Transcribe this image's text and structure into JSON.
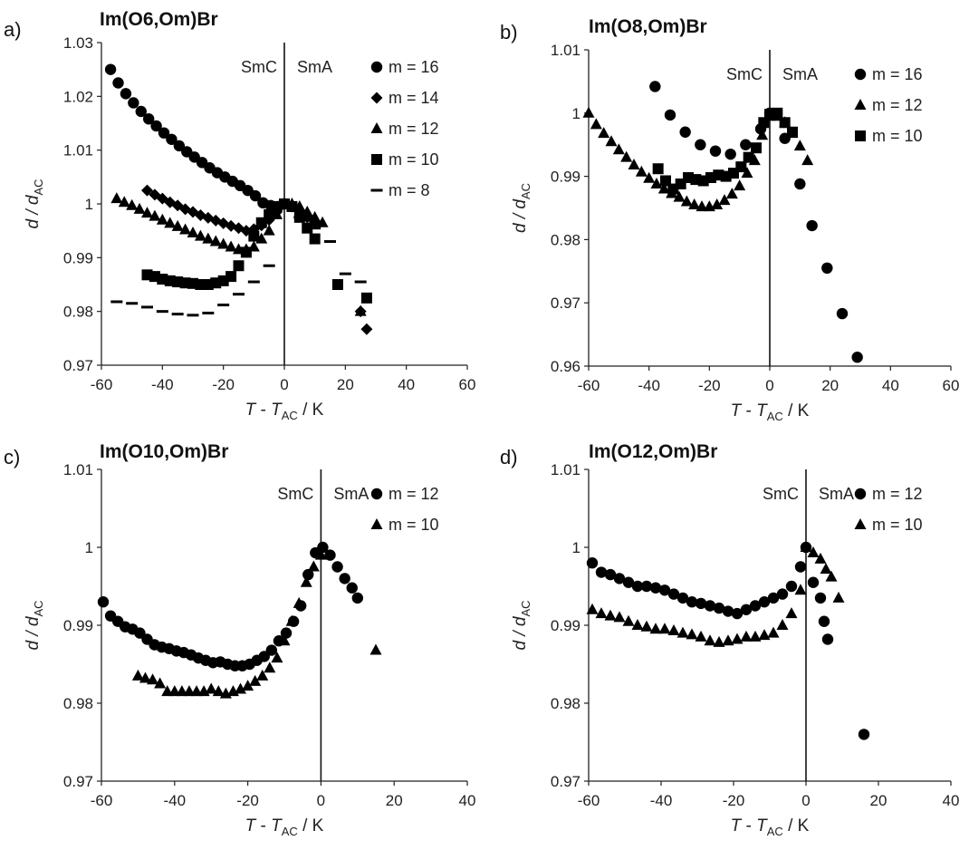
{
  "chart_data": [
    {
      "type": "scatter",
      "panel_label": "a)",
      "title": "Im(O6,Om)Br",
      "xlabel_italic": "T",
      "xlabel_mid": " - ",
      "xlabel_italic2": "T",
      "xlabel_sub": "AC",
      "xlabel_tail": " / K",
      "ylabel_main": "d / d",
      "ylabel_sub": "AC",
      "xlim": [
        -60,
        60
      ],
      "ylim": [
        0.97,
        1.03
      ],
      "xticks": [
        -60,
        -40,
        -20,
        0,
        20,
        40,
        60
      ],
      "xtick_labels": [
        "-60",
        "-40",
        "-20",
        "0",
        "20",
        "40",
        "60"
      ],
      "yticks": [
        0.97,
        0.98,
        0.99,
        1.0,
        1.01,
        1.02,
        1.03
      ],
      "ytick_labels": [
        "0.97",
        "0.98",
        "0.99",
        "1",
        "1.01",
        "1.02",
        "1.03"
      ],
      "phase_line_x": 0,
      "phase_left": "SmC",
      "phase_right": "SmA",
      "legend_position": "top-right",
      "series": [
        {
          "name": "m = 16",
          "marker": "circle",
          "x": [
            -57,
            -54.5,
            -52,
            -49.5,
            -47,
            -44.5,
            -42,
            -39.5,
            -37,
            -34.5,
            -32,
            -29.5,
            -27,
            -24.5,
            -22,
            -19.5,
            -17,
            -14.5,
            -12,
            -9.5,
            -7,
            -4.5,
            -2,
            0
          ],
          "y": [
            1.025,
            1.0225,
            1.0205,
            1.0188,
            1.0172,
            1.0158,
            1.0145,
            1.0132,
            1.012,
            1.0108,
            1.0097,
            1.0087,
            1.0077,
            1.0067,
            1.0058,
            1.005,
            1.0042,
            1.0034,
            1.0025,
            1.0015,
            1.0002,
            0.9997,
            0.9995,
            1.0
          ]
        },
        {
          "name": "m = 14",
          "marker": "diamond",
          "x": [
            -45,
            -42.5,
            -40,
            -37.5,
            -35,
            -32.5,
            -30,
            -27.5,
            -25,
            -22.5,
            -20,
            -17.5,
            -15,
            -12.5,
            -10,
            -7.5,
            -5,
            -2.5,
            0,
            2.5,
            5,
            7.5,
            10,
            25,
            27
          ],
          "y": [
            1.0025,
            1.0017,
            1.001,
            1.0003,
            0.9997,
            0.999,
            0.9985,
            0.9979,
            0.9974,
            0.9969,
            0.9964,
            0.9959,
            0.9955,
            0.995,
            0.9953,
            0.996,
            0.997,
            0.9985,
            1.0,
            0.9995,
            0.9985,
            0.9975,
            0.9965,
            0.98,
            0.9767
          ]
        },
        {
          "name": "m = 12",
          "marker": "triangle",
          "x": [
            -55,
            -52.5,
            -50,
            -47.5,
            -45,
            -42.5,
            -40,
            -37.5,
            -35,
            -32.5,
            -30,
            -27.5,
            -25,
            -22.5,
            -20,
            -17.5,
            -15,
            -12.5,
            -10,
            -7.5,
            -5,
            -2.5,
            0,
            2.5,
            5,
            7.5,
            10,
            12.5,
            25
          ],
          "y": [
            1.001,
            1.0003,
            0.9997,
            0.999,
            0.9983,
            0.9977,
            0.997,
            0.9964,
            0.9958,
            0.9952,
            0.9946,
            0.994,
            0.9935,
            0.993,
            0.9925,
            0.992,
            0.9915,
            0.9915,
            0.992,
            0.9935,
            0.995,
            0.998,
            1.0,
            1.0,
            0.9995,
            0.9985,
            0.9975,
            0.9965,
            0.98
          ]
        },
        {
          "name": "m = 10",
          "marker": "square",
          "x": [
            -45,
            -42.5,
            -40,
            -37.5,
            -35,
            -32.5,
            -30,
            -27.5,
            -25,
            -22.5,
            -20,
            -17.5,
            -15,
            -12.5,
            -10,
            -7.5,
            -5,
            -2.5,
            0,
            2.5,
            5,
            7.5,
            10,
            17.5,
            27
          ],
          "y": [
            0.9868,
            0.9865,
            0.986,
            0.9857,
            0.9855,
            0.9853,
            0.9852,
            0.985,
            0.985,
            0.9853,
            0.9857,
            0.9865,
            0.9885,
            0.991,
            0.994,
            0.9965,
            0.998,
            0.9995,
            1.0,
            0.9995,
            0.9975,
            0.9955,
            0.9935,
            0.985,
            0.9825
          ]
        },
        {
          "name": "m = 8",
          "marker": "dash",
          "x": [
            -55,
            -50,
            -45,
            -40,
            -35,
            -30,
            -25,
            -20,
            -15,
            -10,
            -5,
            5,
            10,
            15,
            20,
            25
          ],
          "y": [
            0.9818,
            0.9815,
            0.9808,
            0.98,
            0.9795,
            0.9793,
            0.9797,
            0.9812,
            0.9832,
            0.9855,
            0.9885,
            0.9975,
            0.9955,
            0.993,
            0.987,
            0.9855
          ]
        }
      ]
    },
    {
      "type": "scatter",
      "panel_label": "b)",
      "title": "Im(O8,Om)Br",
      "xlabel_italic": "T",
      "xlabel_mid": " - ",
      "xlabel_italic2": "T",
      "xlabel_sub": "AC",
      "xlabel_tail": " / K",
      "ylabel_main": "d / d",
      "ylabel_sub": "AC",
      "xlim": [
        -60,
        60
      ],
      "ylim": [
        0.96,
        1.01
      ],
      "xticks": [
        -60,
        -40,
        -20,
        0,
        20,
        40,
        60
      ],
      "xtick_labels": [
        "-60",
        "-40",
        "-20",
        "0",
        "20",
        "40",
        "60"
      ],
      "yticks": [
        0.96,
        0.97,
        0.98,
        0.99,
        1.0,
        1.01
      ],
      "ytick_labels": [
        "0.96",
        "0.97",
        "0.98",
        "0.99",
        "1",
        "1.01"
      ],
      "phase_line_x": 0,
      "phase_left": "SmC",
      "phase_right": "SmA",
      "legend_position": "top-right",
      "series": [
        {
          "name": "m = 16",
          "marker": "circle",
          "x": [
            -38,
            -33,
            -28,
            -23,
            -18,
            -13,
            -8,
            -3,
            0,
            5,
            10,
            14,
            19,
            24,
            29
          ],
          "y": [
            1.0042,
            0.9997,
            0.997,
            0.995,
            0.994,
            0.9935,
            0.995,
            0.9975,
            1.0,
            0.996,
            0.9888,
            0.9822,
            0.9755,
            0.9683,
            0.9614
          ]
        },
        {
          "name": "m = 12",
          "marker": "triangle",
          "x": [
            -60,
            -57.5,
            -55,
            -52.5,
            -50,
            -47.5,
            -45,
            -42.5,
            -40,
            -37.5,
            -35,
            -32.5,
            -30,
            -27.5,
            -25,
            -22.5,
            -20,
            -17.5,
            -15,
            -12.5,
            -10,
            -7.5,
            -5,
            -2.5,
            0,
            2.5,
            5,
            7.5,
            10,
            12.5
          ],
          "y": [
            1.0,
            0.9982,
            0.9968,
            0.9955,
            0.9942,
            0.993,
            0.9918,
            0.9907,
            0.9897,
            0.9888,
            0.988,
            0.9873,
            0.9867,
            0.986,
            0.9855,
            0.9852,
            0.9852,
            0.9855,
            0.9862,
            0.9872,
            0.9885,
            0.9905,
            0.9925,
            0.9965,
            0.9995,
            0.9995,
            0.9985,
            0.9968,
            0.9948,
            0.9925
          ]
        },
        {
          "name": "m = 10",
          "marker": "square",
          "x": [
            -37,
            -34.5,
            -32,
            -29.5,
            -27,
            -24.5,
            -22,
            -19.5,
            -17,
            -14.5,
            -12,
            -9.5,
            -7,
            -4.5,
            -2,
            0,
            2.5,
            5,
            7.5
          ],
          "y": [
            0.9912,
            0.9893,
            0.988,
            0.9888,
            0.9898,
            0.9895,
            0.9893,
            0.9898,
            0.9902,
            0.99,
            0.9905,
            0.9915,
            0.993,
            0.9945,
            0.9985,
            0.9998,
            1.0,
            0.9985,
            0.997
          ]
        }
      ]
    },
    {
      "type": "scatter",
      "panel_label": "c)",
      "title": "Im(O10,Om)Br",
      "xlabel_italic": "T",
      "xlabel_mid": " -",
      "xlabel_italic2": "T",
      "xlabel_sub": "AC",
      "xlabel_tail": " / K",
      "ylabel_main": "d / d",
      "ylabel_sub": "AC",
      "xlim": [
        -60,
        40
      ],
      "ylim": [
        0.97,
        1.01
      ],
      "xticks": [
        -60,
        -40,
        -20,
        0,
        20,
        40
      ],
      "xtick_labels": [
        "-60",
        "-40",
        "-20",
        "0",
        "20",
        "40"
      ],
      "yticks": [
        0.97,
        0.98,
        0.99,
        1.0,
        1.01
      ],
      "ytick_labels": [
        "0.97",
        "0.98",
        "0.99",
        "1",
        "1.01"
      ],
      "phase_line_x": 0,
      "phase_left": "SmC",
      "phase_right": "SmA",
      "legend_position": "top-right",
      "series": [
        {
          "name": "m = 12",
          "marker": "circle",
          "x": [
            -59.5,
            -57.5,
            -55.5,
            -53.5,
            -51.5,
            -49.5,
            -47.5,
            -45.5,
            -43.5,
            -41.5,
            -39.5,
            -37.5,
            -35.5,
            -33.5,
            -31.5,
            -29.5,
            -27.5,
            -25.5,
            -23.5,
            -21.5,
            -19.5,
            -17.5,
            -15.5,
            -13.5,
            -11.5,
            -9.5,
            -7.5,
            -5.5,
            -3.5,
            -1.5,
            0.5,
            2.5,
            4.5,
            6.5,
            8.5,
            10
          ],
          "y": [
            0.993,
            0.9912,
            0.9905,
            0.9898,
            0.9895,
            0.989,
            0.9882,
            0.9875,
            0.9872,
            0.987,
            0.9867,
            0.9865,
            0.9862,
            0.9858,
            0.9855,
            0.9852,
            0.9853,
            0.985,
            0.9848,
            0.9848,
            0.985,
            0.9855,
            0.986,
            0.9868,
            0.988,
            0.989,
            0.9905,
            0.9925,
            0.9965,
            0.9993,
            1.0,
            0.999,
            0.9975,
            0.996,
            0.9948,
            0.9935
          ]
        },
        {
          "name": "m = 10",
          "marker": "triangle",
          "x": [
            -50,
            -48,
            -46,
            -44,
            -42,
            -40,
            -38,
            -36,
            -34,
            -32,
            -30,
            -28,
            -26,
            -24,
            -22,
            -20,
            -18,
            -16,
            -14,
            -12,
            -10,
            -8,
            -6,
            -4,
            -2,
            0,
            15
          ],
          "y": [
            0.9835,
            0.9832,
            0.983,
            0.9825,
            0.9815,
            0.9815,
            0.9815,
            0.9815,
            0.9815,
            0.9815,
            0.9818,
            0.9815,
            0.9812,
            0.9815,
            0.9818,
            0.9822,
            0.9828,
            0.9835,
            0.9845,
            0.9858,
            0.988,
            0.9905,
            0.9928,
            0.9955,
            0.9975,
            0.999,
            0.9868
          ]
        }
      ]
    },
    {
      "type": "scatter",
      "panel_label": "d)",
      "title": "Im(O12,Om)Br",
      "xlabel_italic": "T",
      "xlabel_mid": " -",
      "xlabel_italic2": "T",
      "xlabel_sub": "AC",
      "xlabel_tail": " / K",
      "ylabel_main": "d / d",
      "ylabel_sub": "AC",
      "xlim": [
        -60,
        40
      ],
      "ylim": [
        0.97,
        1.01
      ],
      "xticks": [
        -60,
        -40,
        -20,
        0,
        20,
        40
      ],
      "xtick_labels": [
        "-60",
        "-40",
        "-20",
        "0",
        "20",
        "40"
      ],
      "yticks": [
        0.97,
        0.98,
        0.99,
        1.0,
        1.01
      ],
      "ytick_labels": [
        "0.97",
        "0.98",
        "0.99",
        "1",
        "1.01"
      ],
      "phase_line_x": 0,
      "phase_left": "SmC",
      "phase_right": "SmA",
      "legend_position": "top-right",
      "series": [
        {
          "name": "m = 12",
          "marker": "circle",
          "x": [
            -59,
            -56.5,
            -54,
            -51.5,
            -49,
            -46.5,
            -44,
            -41.5,
            -39,
            -36.5,
            -34,
            -31.5,
            -29,
            -26.5,
            -24,
            -21.5,
            -19,
            -16.5,
            -14,
            -11.5,
            -9,
            -6.5,
            -4,
            -1.5,
            0,
            2,
            4,
            5,
            6,
            16
          ],
          "y": [
            0.998,
            0.9968,
            0.9965,
            0.996,
            0.9955,
            0.995,
            0.995,
            0.9948,
            0.9945,
            0.994,
            0.9935,
            0.993,
            0.9928,
            0.9925,
            0.9922,
            0.9918,
            0.9915,
            0.992,
            0.9925,
            0.993,
            0.9935,
            0.994,
            0.995,
            0.9975,
            1.0,
            0.9955,
            0.9935,
            0.9905,
            0.9882,
            0.976
          ]
        },
        {
          "name": "m = 10",
          "marker": "triangle",
          "x": [
            -59,
            -56.5,
            -54,
            -51.5,
            -49,
            -46.5,
            -44,
            -41.5,
            -39,
            -36.5,
            -34,
            -31.5,
            -29,
            -26.5,
            -24,
            -21.5,
            -19,
            -16.5,
            -14,
            -11.5,
            -9,
            -6.5,
            -4,
            -1.5,
            0,
            2,
            4,
            5.5,
            7,
            9
          ],
          "y": [
            0.992,
            0.9915,
            0.9912,
            0.991,
            0.9905,
            0.99,
            0.9898,
            0.9895,
            0.9895,
            0.9893,
            0.989,
            0.9888,
            0.9885,
            0.988,
            0.9878,
            0.988,
            0.9882,
            0.9885,
            0.9885,
            0.9887,
            0.989,
            0.99,
            0.9915,
            0.9945,
            1.0,
            0.9993,
            0.9985,
            0.9972,
            0.9962,
            0.9935
          ]
        }
      ]
    }
  ]
}
